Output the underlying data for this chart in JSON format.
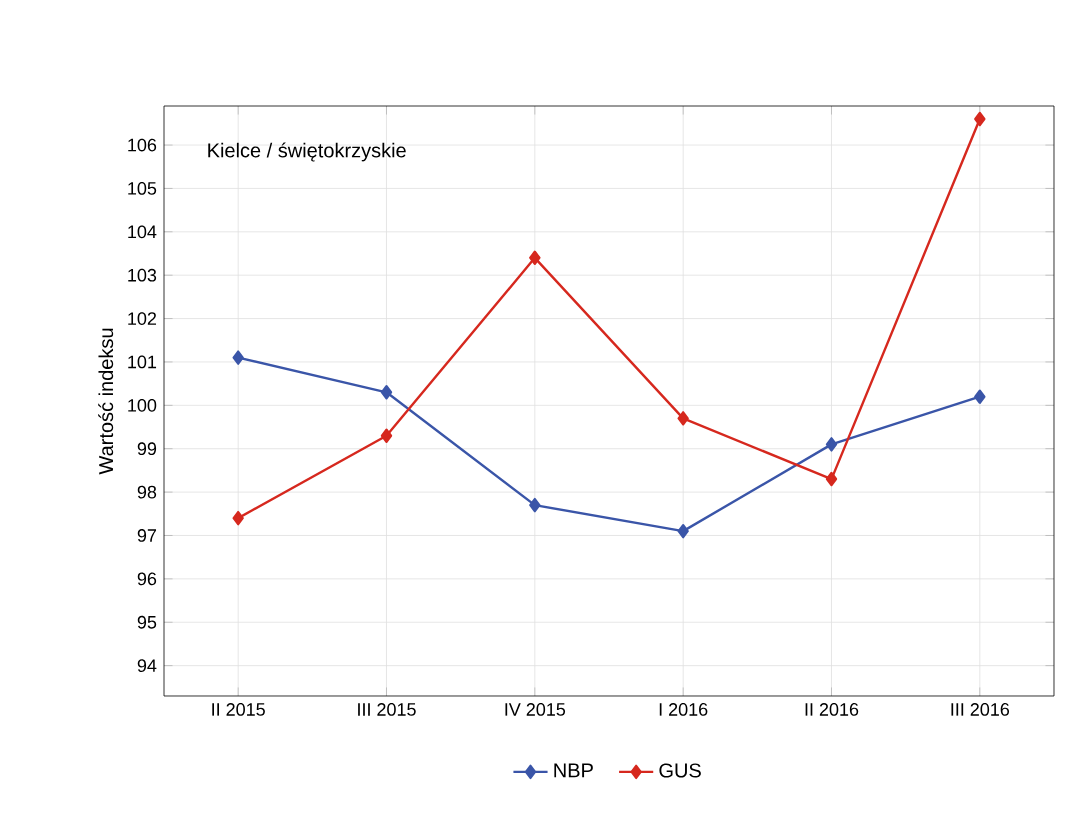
{
  "chart_data": {
    "type": "line",
    "ylabel": "Wartość indeksu",
    "annotations": [
      "Kielce / świętokrzyskie"
    ],
    "categories": [
      "II 2015",
      "III 2015",
      "IV 2015",
      "I 2016",
      "II 2016",
      "III 2016"
    ],
    "series": [
      {
        "name": "NBP",
        "color": "#3a55a8",
        "values": [
          101.1,
          100.3,
          97.7,
          97.1,
          99.1,
          100.2
        ]
      },
      {
        "name": "GUS",
        "color": "#d6281e",
        "values": [
          97.4,
          99.3,
          103.4,
          99.7,
          98.3,
          106.6
        ]
      }
    ],
    "ylim": [
      93.3,
      106.9
    ],
    "yticks": [
      94,
      95,
      96,
      97,
      98,
      99,
      100,
      101,
      102,
      103,
      104,
      105,
      106
    ],
    "grid": true,
    "legend": "bottom",
    "marker": "diamond",
    "line_style": "solid"
  }
}
